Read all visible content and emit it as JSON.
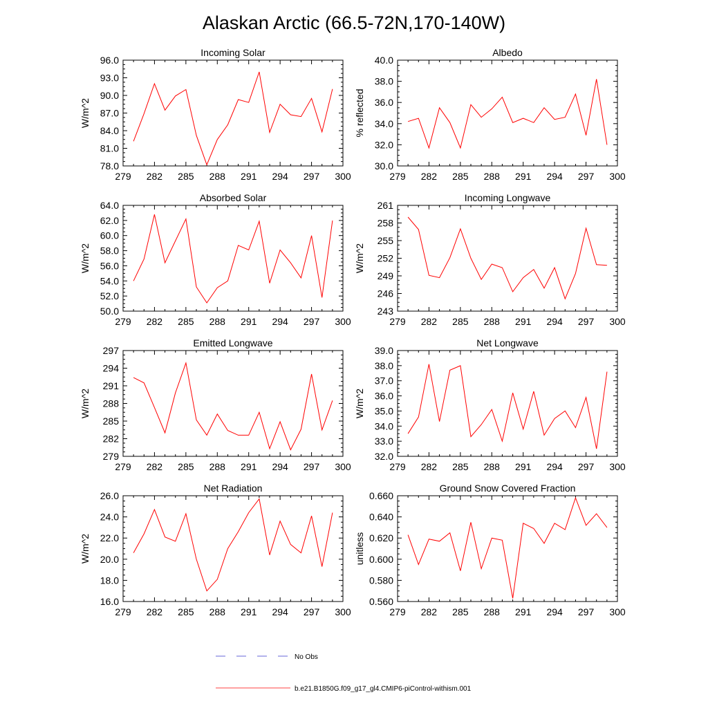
{
  "figure": {
    "title": "Alaskan Arctic (66.5-72N,170-140W)"
  },
  "colors": {
    "model_line": "#ff0000",
    "obs_line": "#3333cc",
    "axis": "#000000"
  },
  "legend": {
    "entries": [
      {
        "label": "No Obs",
        "style": "dashed",
        "color": "#3333cc"
      },
      {
        "label": "b.e21.B1850G.f09_g17_gl4.CMIP6-piControl-withism.001",
        "style": "solid",
        "color": "#ff0000"
      }
    ]
  },
  "chart_data": [
    {
      "type": "line",
      "title": "Incoming Solar",
      "ylabel": "W/m^2",
      "xlim": [
        279,
        300
      ],
      "ylim": [
        78.0,
        96.0
      ],
      "xticks": [
        "279",
        "282",
        "285",
        "288",
        "291",
        "294",
        "297",
        "300"
      ],
      "yticks": [
        "78.0",
        "81.0",
        "84.0",
        "87.0",
        "90.0",
        "93.0",
        "96.0"
      ],
      "x": [
        280,
        281,
        282,
        283,
        284,
        285,
        286,
        287,
        288,
        289,
        290,
        291,
        292,
        293,
        294,
        295,
        296,
        297,
        298,
        299
      ],
      "series": [
        {
          "values": [
            82.2,
            86.9,
            92.0,
            87.5,
            89.9,
            91.0,
            83.2,
            78.2,
            82.5,
            85.0,
            89.3,
            88.8,
            94.0,
            83.7,
            88.5,
            86.7,
            86.4,
            89.5,
            83.8,
            91.1
          ]
        }
      ]
    },
    {
      "type": "line",
      "title": "Albedo",
      "ylabel": "% reflected",
      "xlim": [
        279,
        300
      ],
      "ylim": [
        30.0,
        40.0
      ],
      "xticks": [
        "279",
        "282",
        "285",
        "288",
        "291",
        "294",
        "297",
        "300"
      ],
      "yticks": [
        "30.0",
        "32.0",
        "34.0",
        "36.0",
        "38.0",
        "40.0"
      ],
      "x": [
        280,
        281,
        282,
        283,
        284,
        285,
        286,
        287,
        288,
        289,
        290,
        291,
        292,
        293,
        294,
        295,
        296,
        297,
        298,
        299
      ],
      "series": [
        {
          "values": [
            34.2,
            34.5,
            31.7,
            35.5,
            34.1,
            31.7,
            35.8,
            34.6,
            35.4,
            36.5,
            34.1,
            34.5,
            34.1,
            35.5,
            34.4,
            34.6,
            36.8,
            32.9,
            38.2,
            32.0
          ]
        }
      ]
    },
    {
      "type": "line",
      "title": "Absorbed Solar",
      "ylabel": "W/m^2",
      "xlim": [
        279,
        300
      ],
      "ylim": [
        50.0,
        64.0
      ],
      "xticks": [
        "279",
        "282",
        "285",
        "288",
        "291",
        "294",
        "297",
        "300"
      ],
      "yticks": [
        "50.0",
        "52.0",
        "54.0",
        "56.0",
        "58.0",
        "60.0",
        "62.0",
        "64.0"
      ],
      "x": [
        280,
        281,
        282,
        283,
        284,
        285,
        286,
        287,
        288,
        289,
        290,
        291,
        292,
        293,
        294,
        295,
        296,
        297,
        298,
        299
      ],
      "series": [
        {
          "values": [
            54.0,
            56.9,
            62.8,
            56.4,
            59.3,
            62.2,
            53.2,
            51.1,
            53.1,
            54.0,
            58.7,
            58.1,
            61.9,
            53.7,
            58.1,
            56.4,
            54.4,
            60.0,
            51.8,
            62.0
          ]
        }
      ]
    },
    {
      "type": "line",
      "title": "Incoming Longwave",
      "ylabel": "W/m^2",
      "xlim": [
        279,
        300
      ],
      "ylim": [
        243,
        261
      ],
      "xticks": [
        "279",
        "282",
        "285",
        "288",
        "291",
        "294",
        "297",
        "300"
      ],
      "yticks": [
        "243",
        "246",
        "249",
        "252",
        "255",
        "258",
        "261"
      ],
      "x": [
        280,
        281,
        282,
        283,
        284,
        285,
        286,
        287,
        288,
        289,
        290,
        291,
        292,
        293,
        294,
        295,
        296,
        297,
        298,
        299
      ],
      "series": [
        {
          "values": [
            259.0,
            256.9,
            249.1,
            248.7,
            252.1,
            257.0,
            252.0,
            248.4,
            251.0,
            250.4,
            246.3,
            248.7,
            250.1,
            246.9,
            250.4,
            245.1,
            249.4,
            257.1,
            250.9,
            250.8
          ]
        }
      ]
    },
    {
      "type": "line",
      "title": "Emitted Longwave",
      "ylabel": "W/m^2",
      "xlim": [
        279,
        300
      ],
      "ylim": [
        279,
        297
      ],
      "xticks": [
        "279",
        "282",
        "285",
        "288",
        "291",
        "294",
        "297",
        "300"
      ],
      "yticks": [
        "279",
        "282",
        "285",
        "288",
        "291",
        "294",
        "297"
      ],
      "x": [
        280,
        281,
        282,
        283,
        284,
        285,
        286,
        287,
        288,
        289,
        290,
        291,
        292,
        293,
        294,
        295,
        296,
        297,
        298,
        299
      ],
      "series": [
        {
          "values": [
            292.4,
            291.5,
            287.3,
            283.0,
            289.8,
            294.9,
            285.2,
            282.6,
            286.2,
            283.4,
            282.6,
            282.6,
            286.5,
            280.3,
            284.9,
            280.1,
            283.6,
            293.0,
            283.5,
            288.5
          ]
        }
      ]
    },
    {
      "type": "line",
      "title": "Net Longwave",
      "ylabel": "W/m^2",
      "xlim": [
        279,
        300
      ],
      "ylim": [
        32.0,
        39.0
      ],
      "xticks": [
        "279",
        "282",
        "285",
        "288",
        "291",
        "294",
        "297",
        "300"
      ],
      "yticks": [
        "32.0",
        "33.0",
        "34.0",
        "35.0",
        "36.0",
        "37.0",
        "38.0",
        "39.0"
      ],
      "x": [
        280,
        281,
        282,
        283,
        284,
        285,
        286,
        287,
        288,
        289,
        290,
        291,
        292,
        293,
        294,
        295,
        296,
        297,
        298,
        299
      ],
      "series": [
        {
          "values": [
            33.5,
            34.6,
            38.1,
            34.3,
            37.7,
            38.0,
            33.3,
            34.1,
            35.1,
            33.0,
            36.2,
            33.8,
            36.3,
            33.4,
            34.5,
            35.0,
            33.9,
            35.9,
            32.5,
            37.6
          ]
        }
      ]
    },
    {
      "type": "line",
      "title": "Net Radiation",
      "ylabel": "W/m^2",
      "xlim": [
        279,
        300
      ],
      "ylim": [
        16.0,
        26.0
      ],
      "xticks": [
        "279",
        "282",
        "285",
        "288",
        "291",
        "294",
        "297",
        "300"
      ],
      "yticks": [
        "16.0",
        "18.0",
        "20.0",
        "22.0",
        "24.0",
        "26.0"
      ],
      "x": [
        280,
        281,
        282,
        283,
        284,
        285,
        286,
        287,
        288,
        289,
        290,
        291,
        292,
        293,
        294,
        295,
        296,
        297,
        298,
        299
      ],
      "series": [
        {
          "values": [
            20.6,
            22.4,
            24.7,
            22.1,
            21.7,
            24.3,
            20.0,
            17.0,
            18.1,
            21.0,
            22.6,
            24.4,
            25.7,
            20.4,
            23.6,
            21.4,
            20.6,
            24.1,
            19.3,
            24.4
          ]
        }
      ]
    },
    {
      "type": "line",
      "title": "Ground Snow Covered Fraction",
      "ylabel": "unitless",
      "xlim": [
        279,
        300
      ],
      "ylim": [
        0.56,
        0.66
      ],
      "xticks": [
        "279",
        "282",
        "285",
        "288",
        "291",
        "294",
        "297",
        "300"
      ],
      "yticks": [
        "0.560",
        "0.580",
        "0.600",
        "0.620",
        "0.640",
        "0.660"
      ],
      "x": [
        280,
        281,
        282,
        283,
        284,
        285,
        286,
        287,
        288,
        289,
        290,
        291,
        292,
        293,
        294,
        295,
        296,
        297,
        298,
        299
      ],
      "series": [
        {
          "values": [
            0.623,
            0.595,
            0.619,
            0.617,
            0.625,
            0.589,
            0.635,
            0.591,
            0.62,
            0.618,
            0.563,
            0.634,
            0.629,
            0.615,
            0.634,
            0.628,
            0.658,
            0.632,
            0.643,
            0.63
          ]
        }
      ]
    }
  ]
}
